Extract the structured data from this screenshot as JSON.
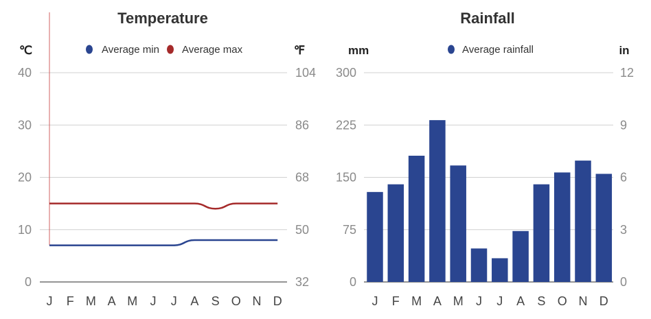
{
  "chart_data": [
    {
      "type": "line",
      "title": "Temperature",
      "ylabel_left": "℃",
      "ylabel_right": "℉",
      "categories": [
        "J",
        "F",
        "M",
        "A",
        "M",
        "J",
        "J",
        "A",
        "S",
        "O",
        "N",
        "D"
      ],
      "ylim": [
        0,
        40
      ],
      "yticks": [
        "0",
        "10",
        "20",
        "30",
        "40"
      ],
      "yticks_right": [
        "32",
        "50",
        "68",
        "86",
        "104"
      ],
      "grid": true,
      "legend": "top",
      "series": [
        {
          "name": "Average min",
          "color": "#2a4590",
          "values": [
            7,
            7,
            7,
            7,
            7,
            7,
            7,
            8,
            8,
            8,
            8,
            8
          ]
        },
        {
          "name": "Average max",
          "color": "#a52a2a",
          "values": [
            15,
            15,
            15,
            15,
            15,
            15,
            15,
            15,
            14,
            15,
            15,
            15
          ]
        }
      ]
    },
    {
      "type": "bar",
      "title": "Rainfall",
      "ylabel_left": "mm",
      "ylabel_right": "in",
      "categories": [
        "J",
        "F",
        "M",
        "A",
        "M",
        "J",
        "J",
        "A",
        "S",
        "O",
        "N",
        "D"
      ],
      "ylim": [
        0,
        300
      ],
      "yticks": [
        "0",
        "75",
        "150",
        "225",
        "300"
      ],
      "yticks_right": [
        "0",
        "3",
        "6",
        "9",
        "12"
      ],
      "grid": true,
      "legend": "top",
      "series": [
        {
          "name": "Average rainfall",
          "color": "#2a4590",
          "values": [
            129,
            140,
            181,
            232,
            167,
            48,
            34,
            73,
            140,
            157,
            174,
            155
          ]
        }
      ]
    }
  ]
}
